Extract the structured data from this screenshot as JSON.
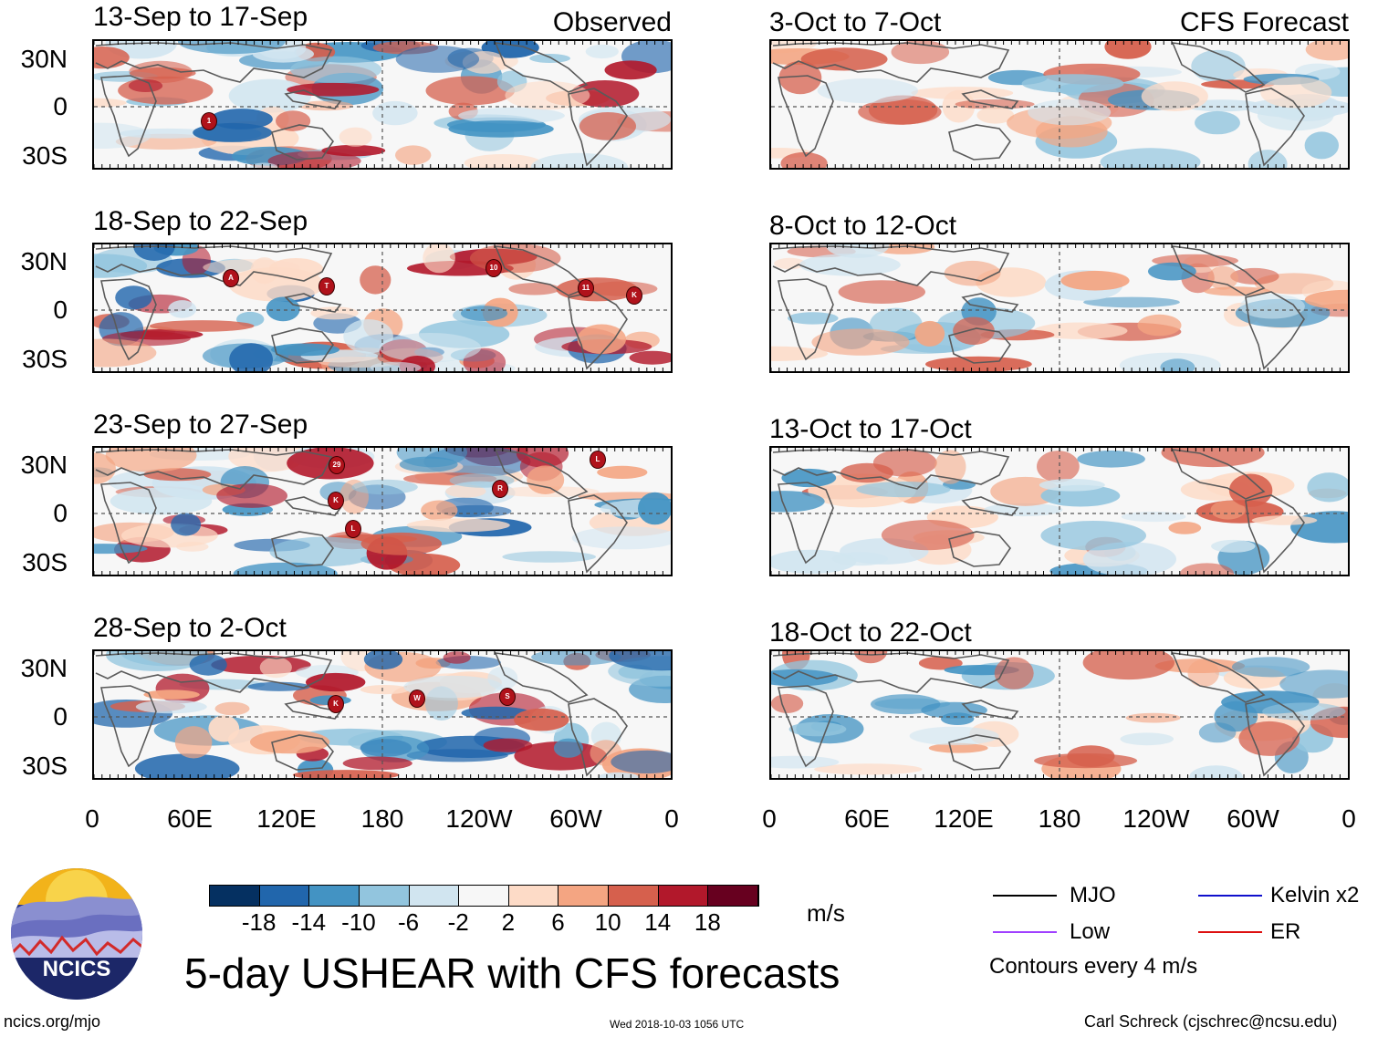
{
  "headers": {
    "observed": "Observed",
    "forecast": "CFS Forecast"
  },
  "lat_labels": [
    "30N",
    "0",
    "30S"
  ],
  "lon_labels": [
    "0",
    "60E",
    "120E",
    "180",
    "120W",
    "60W",
    "0"
  ],
  "observed_panels": [
    {
      "date": "13-Sep to 17-Sep",
      "storms": [
        "1"
      ]
    },
    {
      "date": "18-Sep to 22-Sep",
      "storms": [
        "A",
        "T",
        "10",
        "11",
        "K"
      ]
    },
    {
      "date": "23-Sep to 27-Sep",
      "storms": [
        "29",
        "K",
        "L",
        "R",
        "L"
      ]
    },
    {
      "date": "28-Sep to 2-Oct",
      "storms": [
        "K",
        "W",
        "S"
      ]
    }
  ],
  "forecast_panels": [
    {
      "date": "3-Oct to 7-Oct"
    },
    {
      "date": "8-Oct to 12-Oct"
    },
    {
      "date": "13-Oct to 17-Oct"
    },
    {
      "date": "18-Oct to 22-Oct"
    }
  ],
  "colorbar": {
    "colors": [
      "#053061",
      "#2166ac",
      "#4393c3",
      "#92c5de",
      "#d1e5f0",
      "#f7f7f7",
      "#fddbc7",
      "#f4a582",
      "#d6604d",
      "#b2182b",
      "#67001f"
    ],
    "labels": [
      "-18",
      "-14",
      "-10",
      "-6",
      "-2",
      "2",
      "6",
      "10",
      "14",
      "18"
    ],
    "units": "m/s"
  },
  "legend": {
    "mjo": "MJO",
    "low": "Low",
    "kelvin": "Kelvin x2",
    "er": "ER",
    "contours": "Contours every 4 m/s",
    "colors": {
      "mjo": "#000000",
      "low": "#a040ff",
      "kelvin": "#1010cc",
      "er": "#dd1010"
    }
  },
  "title": "5-day USHEAR with CFS forecasts",
  "logo_text": "NCICS",
  "footer": {
    "left": "ncics.org/mjo",
    "center": "Wed 2018-10-03 1056 UTC",
    "right": "Carl Schreck (cjschrec@ncsu.edu)"
  }
}
